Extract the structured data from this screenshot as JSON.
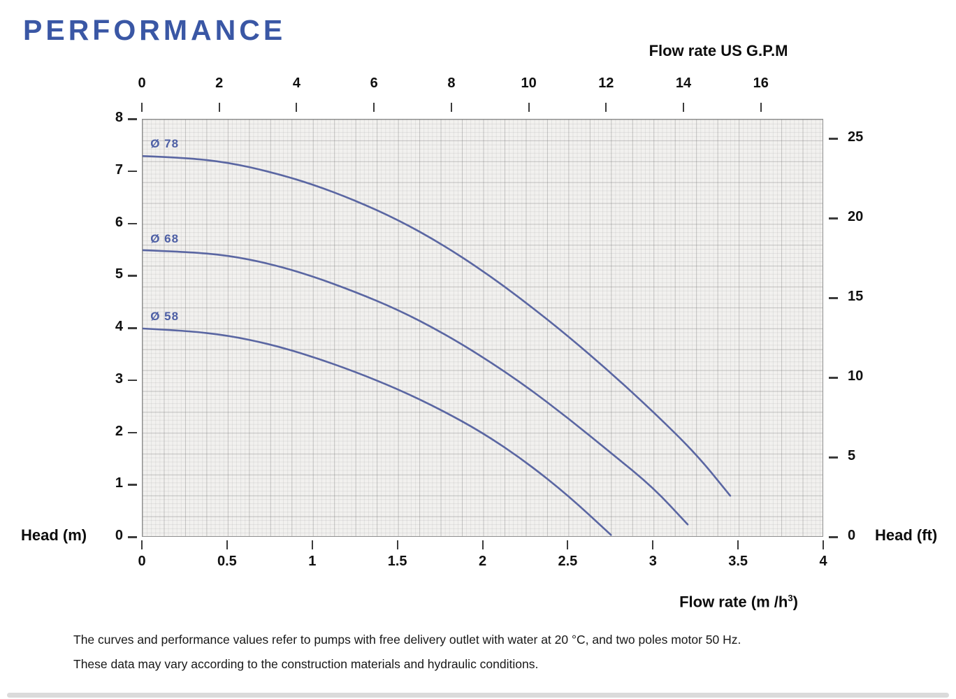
{
  "page": {
    "title": "PERFORMANCE",
    "footer_lines": [
      "The curves and performance values refer to pumps with free delivery outlet with water at 20 °C, and two poles motor 50 Hz.",
      "These data may vary according to the construction materials and hydraulic conditions."
    ]
  },
  "chart_data": {
    "type": "line",
    "title": "PERFORMANCE",
    "grid": true,
    "legend_position": "on-curve",
    "curve_color": "#5a66a2",
    "label_color": "#4d5fa5",
    "x_axis_bottom": {
      "label_prefix": "Flow rate  (m /h",
      "label_sup": "3",
      "label_suffix": ")",
      "unit": "m3/h",
      "lim": [
        0,
        4
      ],
      "ticks": [
        0,
        0.5,
        1,
        1.5,
        2,
        2.5,
        3,
        3.5,
        4
      ]
    },
    "x_axis_top": {
      "label": "Flow rate US  G.P.M",
      "unit": "US GPM",
      "gpm_per_m3h": 4.403,
      "ticks": [
        0,
        2,
        4,
        6,
        8,
        10,
        12,
        14,
        16
      ]
    },
    "y_axis_left": {
      "label": "Head (m)",
      "unit": "m",
      "lim": [
        0,
        8
      ],
      "ticks": [
        0,
        1,
        2,
        3,
        4,
        5,
        6,
        7,
        8
      ]
    },
    "y_axis_right": {
      "label": "Head (ft)",
      "unit": "ft",
      "ft_per_m": 3.2808,
      "ticks": [
        0,
        5,
        10,
        15,
        20,
        25
      ]
    },
    "series": [
      {
        "name": "Ø78",
        "label": "Ø 78",
        "label_pos": {
          "q": 0.05,
          "h": 7.65
        },
        "points": [
          [
            0,
            7.3
          ],
          [
            0.25,
            7.27
          ],
          [
            0.5,
            7.18
          ],
          [
            0.75,
            7.0
          ],
          [
            1.0,
            6.76
          ],
          [
            1.25,
            6.45
          ],
          [
            1.5,
            6.08
          ],
          [
            1.75,
            5.63
          ],
          [
            2.0,
            5.1
          ],
          [
            2.25,
            4.5
          ],
          [
            2.5,
            3.85
          ],
          [
            2.75,
            3.15
          ],
          [
            3.0,
            2.4
          ],
          [
            3.25,
            1.6
          ],
          [
            3.45,
            0.8
          ]
        ]
      },
      {
        "name": "Ø68",
        "label": "Ø 68",
        "label_pos": {
          "q": 0.05,
          "h": 5.83
        },
        "points": [
          [
            0,
            5.5
          ],
          [
            0.25,
            5.47
          ],
          [
            0.5,
            5.4
          ],
          [
            0.75,
            5.24
          ],
          [
            1.0,
            5.0
          ],
          [
            1.25,
            4.7
          ],
          [
            1.5,
            4.36
          ],
          [
            1.75,
            3.94
          ],
          [
            2.0,
            3.45
          ],
          [
            2.25,
            2.9
          ],
          [
            2.5,
            2.28
          ],
          [
            2.75,
            1.62
          ],
          [
            3.0,
            0.95
          ],
          [
            3.2,
            0.25
          ]
        ]
      },
      {
        "name": "Ø58",
        "label": "Ø 58",
        "label_pos": {
          "q": 0.05,
          "h": 4.35
        },
        "points": [
          [
            0,
            4.0
          ],
          [
            0.25,
            3.96
          ],
          [
            0.5,
            3.87
          ],
          [
            0.75,
            3.7
          ],
          [
            1.0,
            3.46
          ],
          [
            1.25,
            3.17
          ],
          [
            1.5,
            2.84
          ],
          [
            1.75,
            2.45
          ],
          [
            2.0,
            2.0
          ],
          [
            2.25,
            1.45
          ],
          [
            2.5,
            0.8
          ],
          [
            2.75,
            0.05
          ]
        ]
      }
    ]
  }
}
